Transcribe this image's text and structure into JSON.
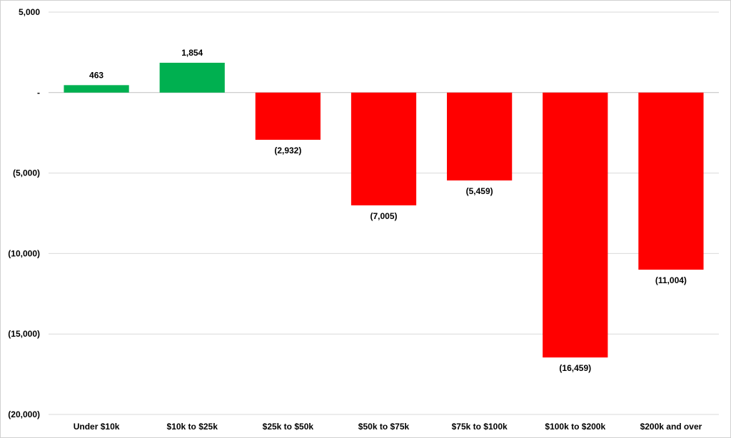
{
  "chart_data": {
    "type": "bar",
    "categories": [
      "Under $10k",
      "$10k to $25k",
      "$25k to $50k",
      "$50k to $75k",
      "$75k to $100k",
      "$100k to $200k",
      "$200k and over"
    ],
    "values": [
      463,
      1854,
      -2932,
      -7005,
      -5459,
      -16459,
      -11004
    ],
    "data_labels": [
      "463",
      "1,854",
      "(2,932)",
      "(7,005)",
      "(5,459)",
      "(16,459)",
      "(11,004)"
    ],
    "ylim": [
      -20000,
      5000
    ],
    "yticks": [
      5000,
      0,
      -5000,
      -10000,
      -15000,
      -20000
    ],
    "ytick_labels": [
      "5,000",
      "-",
      "(5,000)",
      "(10,000)",
      "(15,000)",
      "(20,000)"
    ],
    "grid": true,
    "colors": {
      "positive": "#00b050",
      "negative": "#ff0000",
      "grid": "#d9d9d9",
      "axis": "#bfbfbf"
    }
  }
}
